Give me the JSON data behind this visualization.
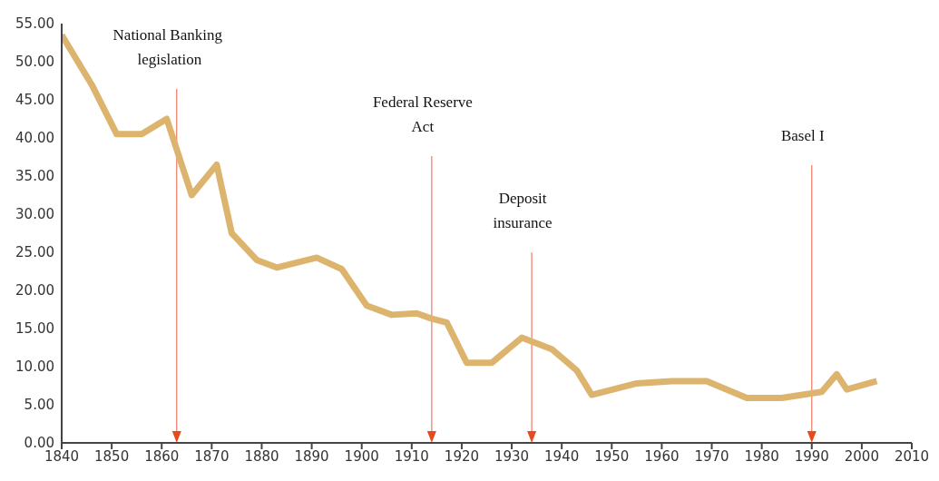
{
  "chart_data": {
    "type": "line",
    "x": [
      1840,
      1846,
      1851,
      1856,
      1861,
      1866,
      1871,
      1874,
      1879,
      1883,
      1891,
      1896,
      1901,
      1906,
      1911,
      1914,
      1917,
      1921,
      1926,
      1932,
      1938,
      1943,
      1946,
      1955,
      1962,
      1969,
      1977,
      1984,
      1992,
      1995,
      1997,
      2003
    ],
    "series": [
      {
        "color": "#dcb46e",
        "values": [
          53.5,
          47,
          40.5,
          40.5,
          42.5,
          32.5,
          36.5,
          27.5,
          24,
          23,
          24.3,
          22.8,
          18,
          16.8,
          17,
          16.3,
          15.8,
          10.5,
          10.5,
          13.8,
          12.3,
          9.5,
          6.3,
          7.8,
          8.1,
          8.1,
          5.9,
          5.9,
          6.7,
          9,
          7,
          8.1
        ]
      }
    ],
    "xlim": [
      1840,
      2010
    ],
    "xticks": [
      1840,
      1850,
      1860,
      1870,
      1880,
      1890,
      1900,
      1910,
      1920,
      1930,
      1940,
      1950,
      1960,
      1970,
      1980,
      1990,
      2000,
      2010
    ],
    "ylim": [
      0,
      55
    ],
    "yticks": [
      {
        "value": 0,
        "label": "0.00"
      },
      {
        "value": 5,
        "label": "5.00"
      },
      {
        "value": 10,
        "label": "10.00"
      },
      {
        "value": 15,
        "label": "15.00"
      },
      {
        "value": 20,
        "label": "20.00"
      },
      {
        "value": 25,
        "label": "25.00"
      },
      {
        "value": 30,
        "label": "30.00"
      },
      {
        "value": 35,
        "label": "35.00"
      },
      {
        "value": 40,
        "label": "40.00"
      },
      {
        "value": 45,
        "label": "45.00"
      },
      {
        "value": 50,
        "label": "50.00"
      },
      {
        "value": 55,
        "label": "55.00"
      }
    ],
    "ref_lines": [
      {
        "axis": "x",
        "value": 1863,
        "label": "National Banking\n legislation",
        "color": "#f07860"
      },
      {
        "axis": "x",
        "value": 1914,
        "label": "Federal Reserve\nAct",
        "color": "#f07860"
      },
      {
        "axis": "x",
        "value": 1934,
        "label": "Deposit\ninsurance",
        "color": "#f07860"
      },
      {
        "axis": "x",
        "value": 1990,
        "label": "Basel I",
        "color": "#f07860"
      }
    ],
    "grid": false,
    "legend": false,
    "marker": "none",
    "line_style": "solid"
  }
}
